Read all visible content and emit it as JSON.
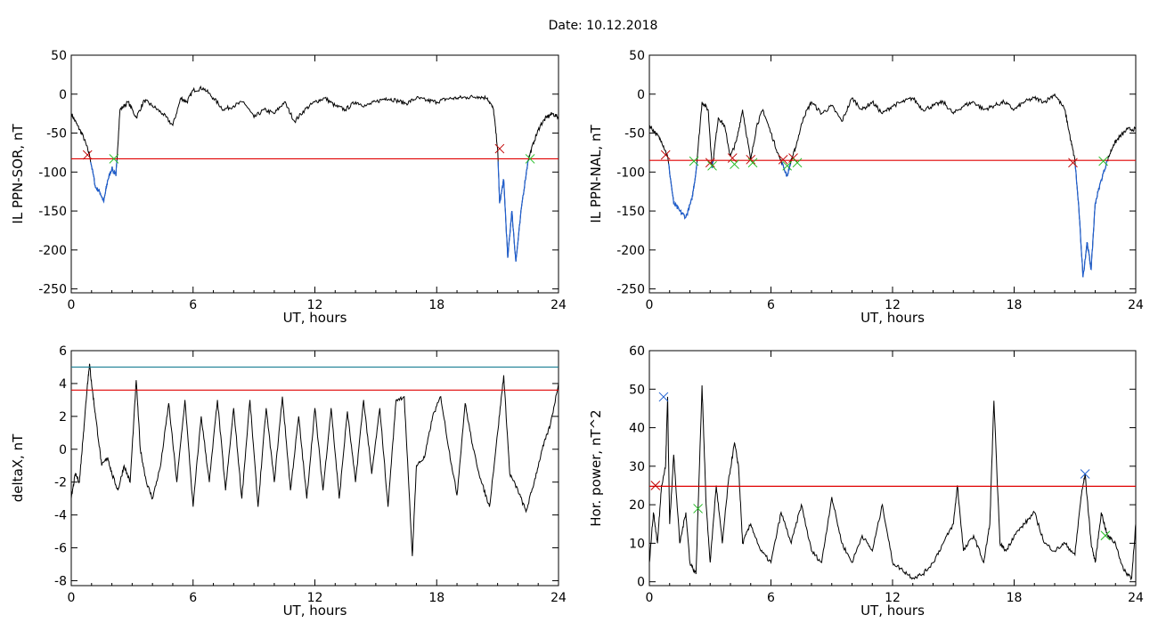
{
  "title": "Date:  10.12.2018",
  "colors": {
    "trace": "#000000",
    "threshold": "#e00000",
    "below": "#1f5fd0",
    "secondary": "#1b7f94",
    "cross_red": "#c00000",
    "cross_green": "#22bb22",
    "cross_blue": "#2060d0"
  },
  "chart_data": [
    {
      "type": "line",
      "name": "panel-ppn-sor",
      "xlabel": "UT, hours",
      "ylabel": "IL PPN-SOR, nT",
      "xlim": [
        0,
        24
      ],
      "ylim": [
        -255,
        50
      ],
      "xticks": [
        "0",
        "6",
        "12",
        "18",
        "24"
      ],
      "yticks": [
        "50",
        "0",
        "-50",
        "-100",
        "-150",
        "-200",
        "-250"
      ],
      "threshold": -83,
      "x": [
        0,
        0.3,
        0.6,
        0.9,
        1.2,
        1.4,
        1.6,
        1.8,
        2.0,
        2.2,
        2.4,
        2.8,
        3.2,
        3.6,
        4.0,
        4.5,
        5.0,
        5.4,
        5.7,
        6.0,
        6.5,
        7.0,
        7.5,
        8.0,
        8.5,
        9.0,
        9.5,
        10.0,
        10.5,
        11.0,
        11.5,
        12.0,
        12.5,
        13.0,
        13.5,
        14.0,
        14.5,
        15.0,
        15.5,
        16.0,
        16.5,
        17.0,
        17.5,
        18.0,
        18.5,
        19.0,
        19.5,
        20.0,
        20.5,
        20.8,
        21.0,
        21.1,
        21.3,
        21.5,
        21.7,
        21.9,
        22.2,
        22.5,
        22.8,
        23.1,
        23.4,
        23.7,
        24.0
      ],
      "y": [
        -25,
        -40,
        -55,
        -78,
        -120,
        -125,
        -138,
        -110,
        -95,
        -105,
        -20,
        -10,
        -30,
        -8,
        -15,
        -25,
        -40,
        -5,
        -10,
        5,
        8,
        -5,
        -20,
        -15,
        -10,
        -30,
        -20,
        -25,
        -10,
        -35,
        -20,
        -10,
        -5,
        -15,
        -20,
        -10,
        -15,
        -10,
        -5,
        -8,
        -12,
        -5,
        -8,
        -10,
        -6,
        -5,
        -4,
        -3,
        -5,
        -20,
        -70,
        -140,
        -110,
        -210,
        -150,
        -215,
        -140,
        -85,
        -60,
        -40,
        -30,
        -25,
        -30
      ],
      "crosses": [
        {
          "x": 0.8,
          "y": -78,
          "color": "red"
        },
        {
          "x": 2.1,
          "y": -83,
          "color": "green"
        },
        {
          "x": 21.1,
          "y": -70,
          "color": "red"
        },
        {
          "x": 22.6,
          "y": -83,
          "color": "green"
        }
      ]
    },
    {
      "type": "line",
      "name": "panel-ppn-nal",
      "xlabel": "UT, hours",
      "ylabel": "IL PPN-NAL, nT",
      "xlim": [
        0,
        24
      ],
      "ylim": [
        -255,
        50
      ],
      "xticks": [
        "0",
        "6",
        "12",
        "18",
        "24"
      ],
      "yticks": [
        "50",
        "0",
        "-50",
        "-100",
        "-150",
        "-200",
        "-250"
      ],
      "threshold": -85,
      "x": [
        0,
        0.3,
        0.6,
        0.9,
        1.2,
        1.5,
        1.8,
        2.1,
        2.3,
        2.6,
        2.9,
        3.1,
        3.4,
        3.7,
        4.0,
        4.3,
        4.6,
        5.0,
        5.3,
        5.6,
        6.0,
        6.4,
        6.8,
        7.0,
        7.2,
        7.6,
        8.0,
        8.5,
        9.0,
        9.5,
        10.0,
        10.5,
        11.0,
        11.5,
        12.0,
        12.5,
        13.0,
        13.5,
        14.0,
        14.5,
        15.0,
        15.5,
        16.0,
        16.5,
        17.0,
        17.5,
        18.0,
        18.5,
        19.0,
        19.5,
        20.0,
        20.5,
        20.8,
        21.0,
        21.2,
        21.4,
        21.6,
        21.8,
        22.0,
        22.3,
        22.6,
        22.9,
        23.2,
        23.6,
        24.0
      ],
      "y": [
        -40,
        -50,
        -60,
        -80,
        -140,
        -150,
        -158,
        -135,
        -100,
        -10,
        -20,
        -95,
        -30,
        -40,
        -80,
        -60,
        -20,
        -85,
        -40,
        -20,
        -50,
        -80,
        -105,
        -85,
        -70,
        -30,
        -10,
        -25,
        -15,
        -35,
        -5,
        -20,
        -10,
        -25,
        -15,
        -10,
        -5,
        -20,
        -15,
        -10,
        -25,
        -15,
        -10,
        -20,
        -15,
        -10,
        -20,
        -10,
        -5,
        -10,
        0,
        -20,
        -60,
        -85,
        -150,
        -235,
        -190,
        -225,
        -140,
        -110,
        -85,
        -65,
        -55,
        -45,
        -45
      ],
      "crosses": [
        {
          "x": 0.8,
          "y": -78,
          "color": "red"
        },
        {
          "x": 2.2,
          "y": -86,
          "color": "green"
        },
        {
          "x": 3.0,
          "y": -88,
          "color": "red"
        },
        {
          "x": 3.1,
          "y": -92,
          "color": "green"
        },
        {
          "x": 4.1,
          "y": -82,
          "color": "red"
        },
        {
          "x": 4.2,
          "y": -90,
          "color": "green"
        },
        {
          "x": 5.0,
          "y": -84,
          "color": "red"
        },
        {
          "x": 5.1,
          "y": -88,
          "color": "green"
        },
        {
          "x": 6.6,
          "y": -84,
          "color": "red"
        },
        {
          "x": 6.8,
          "y": -92,
          "color": "green"
        },
        {
          "x": 7.1,
          "y": -82,
          "color": "red"
        },
        {
          "x": 7.3,
          "y": -88,
          "color": "green"
        },
        {
          "x": 20.9,
          "y": -88,
          "color": "red"
        },
        {
          "x": 22.4,
          "y": -86,
          "color": "green"
        }
      ]
    },
    {
      "type": "line",
      "name": "panel-deltax",
      "xlabel": "UT, hours",
      "ylabel": "deltaX, nT",
      "xlim": [
        0,
        24
      ],
      "ylim": [
        -8.3,
        6
      ],
      "xticks": [
        "0",
        "6",
        "12",
        "18",
        "24"
      ],
      "yticks": [
        "6",
        "4",
        "2",
        "0",
        "-2",
        "-4",
        "-6",
        "-8"
      ],
      "threshold": 3.6,
      "threshold2": 5.0,
      "x": [
        0,
        0.2,
        0.4,
        0.6,
        0.8,
        0.9,
        1.0,
        1.2,
        1.5,
        1.8,
        2.0,
        2.3,
        2.6,
        2.9,
        3.2,
        3.4,
        3.7,
        4.0,
        4.4,
        4.8,
        5.2,
        5.6,
        6.0,
        6.4,
        6.8,
        7.2,
        7.6,
        8.0,
        8.4,
        8.8,
        9.2,
        9.6,
        10.0,
        10.4,
        10.8,
        11.2,
        11.6,
        12.0,
        12.4,
        12.8,
        13.2,
        13.6,
        14.0,
        14.4,
        14.8,
        15.2,
        15.6,
        16.0,
        16.4,
        16.8,
        17.0,
        17.4,
        17.8,
        18.2,
        18.6,
        19.0,
        19.4,
        19.8,
        20.2,
        20.6,
        21.0,
        21.3,
        21.6,
        22.0,
        22.4,
        22.8,
        23.2,
        23.6,
        24.0
      ],
      "y": [
        -3,
        -1.5,
        -2,
        1,
        4,
        5.2,
        4,
        2,
        -1,
        -0.5,
        -1.5,
        -2.5,
        -1,
        -2,
        4.2,
        0,
        -2,
        -3,
        -1,
        2.8,
        -2,
        3,
        -3.5,
        2,
        -2,
        3,
        -2.5,
        2.5,
        -3,
        3,
        -3.5,
        2.5,
        -2,
        3.2,
        -2.5,
        2,
        -3,
        2.5,
        -2.5,
        2.5,
        -3,
        2.3,
        -2,
        3,
        -1.5,
        2.5,
        -3.5,
        3,
        3.2,
        -6.5,
        -1,
        -0.5,
        2,
        3.2,
        0,
        -2.8,
        2.8,
        0,
        -2,
        -3.5,
        1,
        4.5,
        -1.5,
        -2.5,
        -3.8,
        -2,
        0,
        1.5,
        4
      ],
      "crosses": []
    },
    {
      "type": "line",
      "name": "panel-hor-power",
      "xlabel": "UT, hours",
      "ylabel": "Hor. power, nT^2",
      "xlim": [
        0,
        24
      ],
      "ylim": [
        -1,
        60
      ],
      "xticks": [
        "0",
        "6",
        "12",
        "18",
        "24"
      ],
      "yticks": [
        "60",
        "50",
        "40",
        "30",
        "20",
        "10",
        "0"
      ],
      "threshold": 24.8,
      "x": [
        0,
        0.2,
        0.4,
        0.6,
        0.8,
        0.9,
        1.0,
        1.2,
        1.5,
        1.8,
        2.0,
        2.3,
        2.6,
        2.8,
        3.0,
        3.3,
        3.6,
        3.9,
        4.2,
        4.4,
        4.6,
        5.0,
        5.5,
        6.0,
        6.5,
        7.0,
        7.5,
        8.0,
        8.5,
        9.0,
        9.5,
        10.0,
        10.5,
        11.0,
        11.5,
        12.0,
        12.5,
        13.0,
        13.5,
        14.0,
        14.5,
        15.0,
        15.2,
        15.5,
        16.0,
        16.5,
        16.8,
        17.0,
        17.3,
        17.6,
        18.0,
        18.5,
        19.0,
        19.5,
        20.0,
        20.5,
        21.0,
        21.3,
        21.5,
        21.8,
        22.0,
        22.3,
        22.6,
        23.0,
        23.4,
        23.8,
        24.0
      ],
      "y": [
        5,
        18,
        10,
        25,
        30,
        48,
        15,
        33,
        10,
        18,
        5,
        2,
        51,
        20,
        5,
        25,
        10,
        26,
        36,
        30,
        10,
        15,
        8,
        5,
        18,
        10,
        20,
        8,
        5,
        22,
        10,
        5,
        12,
        8,
        20,
        5,
        3,
        1,
        2,
        5,
        10,
        15,
        25,
        8,
        12,
        5,
        15,
        47,
        10,
        8,
        12,
        15,
        18,
        10,
        8,
        10,
        7,
        22,
        28,
        10,
        5,
        18,
        12,
        10,
        3,
        1,
        15
      ],
      "crosses": [
        {
          "x": 0.3,
          "y": 25,
          "color": "red"
        },
        {
          "x": 0.7,
          "y": 48,
          "color": "blue"
        },
        {
          "x": 2.4,
          "y": 19,
          "color": "green"
        },
        {
          "x": 21.5,
          "y": 28,
          "color": "blue"
        },
        {
          "x": 22.5,
          "y": 12,
          "color": "green"
        }
      ]
    }
  ]
}
